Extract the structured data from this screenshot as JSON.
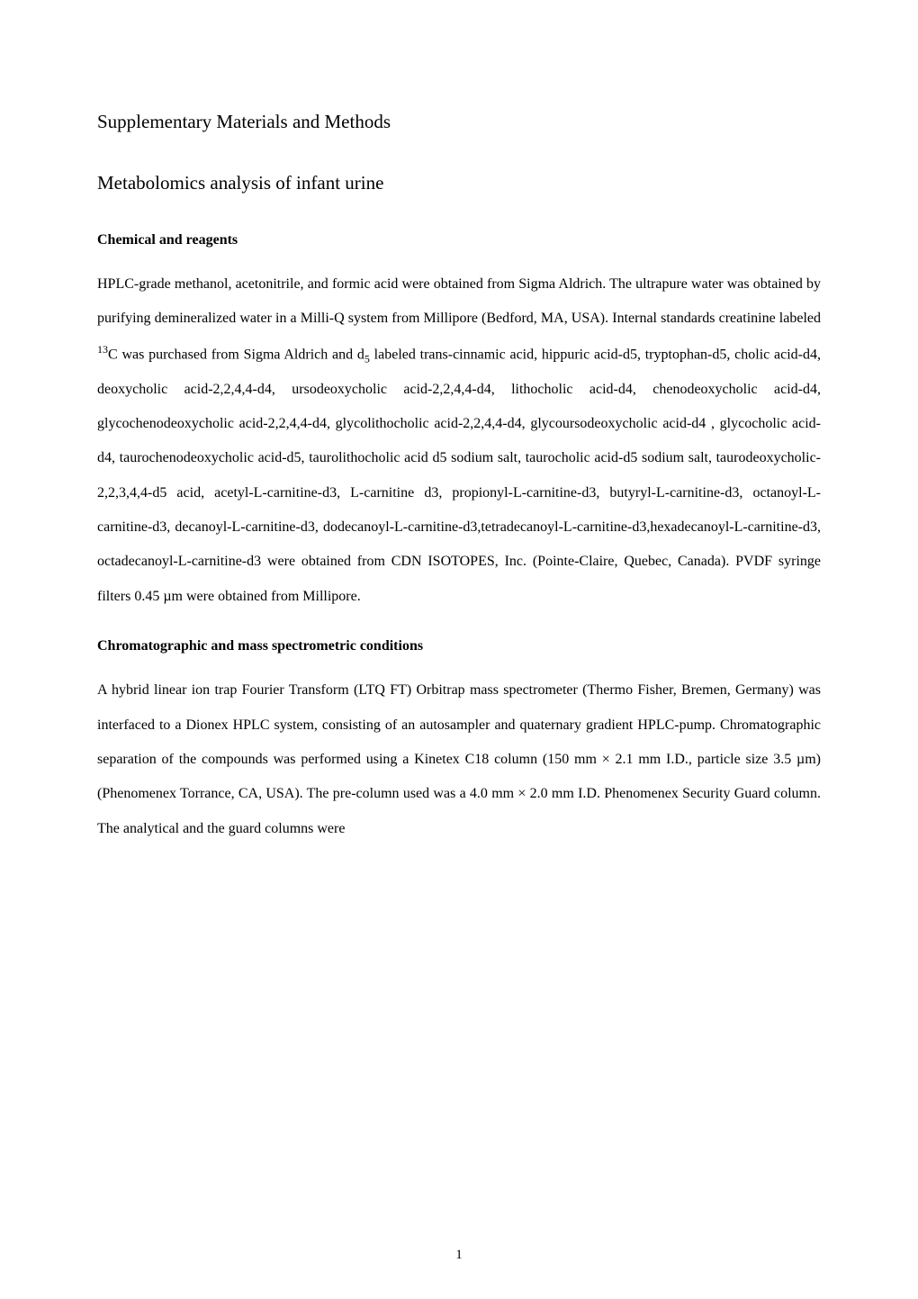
{
  "document": {
    "title": "Supplementary Materials and Methods",
    "section_title": "Metabolomics analysis of infant urine",
    "subsection_1_title": "Chemical and reagents",
    "subsection_1_body_part1": "HPLC-grade methanol, acetonitrile, and formic acid were obtained from Sigma Aldrich. The ultrapure water was obtained by purifying demineralized water in a Milli-Q system from Millipore (Bedford, MA, USA). Internal standards creatinine labeled ",
    "subsection_1_sup1": "13",
    "subsection_1_body_part2": "C was purchased from Sigma Aldrich and d",
    "subsection_1_sub1": "5",
    "subsection_1_body_part3": " labeled trans-cinnamic acid, hippuric acid-d5, tryptophan-d5, cholic acid-d4, deoxycholic acid-2,2,4,4-d4, ursodeoxycholic acid-2,2,4,4-d4, lithocholic acid-d4, chenodeoxycholic acid-d4, glycochenodeoxycholic acid-2,2,4,4-d4, glycolithocholic acid-2,2,4,4-d4, glycoursodeoxycholic acid-d4 , glycocholic acid-d4, taurochenodeoxycholic acid-d5, taurolithocholic acid d5 sodium salt, taurocholic acid-d5 sodium salt, taurodeoxycholic-2,2,3,4,4-d5 acid, acetyl-L-carnitine-d3, L-carnitine d3, propionyl-L-carnitine-d3, butyryl-L-carnitine-d3, octanoyl-L-carnitine-d3, decanoyl-L-carnitine-d3, dodecanoyl-L-carnitine-d3,tetradecanoyl-L-carnitine-d3,hexadecanoyl-L-carnitine-d3, octadecanoyl-L-carnitine-d3 were obtained from CDN ISOTOPES, Inc. (Pointe-Claire, Quebec, Canada). PVDF syringe filters 0.45 µm were obtained from Millipore.",
    "subsection_2_title": "Chromatographic and mass spectrometric conditions",
    "subsection_2_body": "A hybrid linear ion trap Fourier Transform (LTQ FT) Orbitrap mass spectrometer (Thermo Fisher, Bremen, Germany) was interfaced to a Dionex HPLC system, consisting of an autosampler and quaternary gradient HPLC-pump. Chromatographic separation of the compounds was performed using a Kinetex C18 column (150 mm × 2.1 mm I.D., particle size 3.5 µm) (Phenomenex Torrance, CA, USA). The pre-column used was a 4.0 mm × 2.0 mm I.D. Phenomenex Security Guard column. The analytical and the guard columns were",
    "page_number": "1"
  },
  "styling": {
    "background_color": "#ffffff",
    "text_color": "#000000",
    "heading_fontsize": 21,
    "subheading_fontsize": 16,
    "body_fontsize": 16,
    "font_family": "Times New Roman"
  }
}
